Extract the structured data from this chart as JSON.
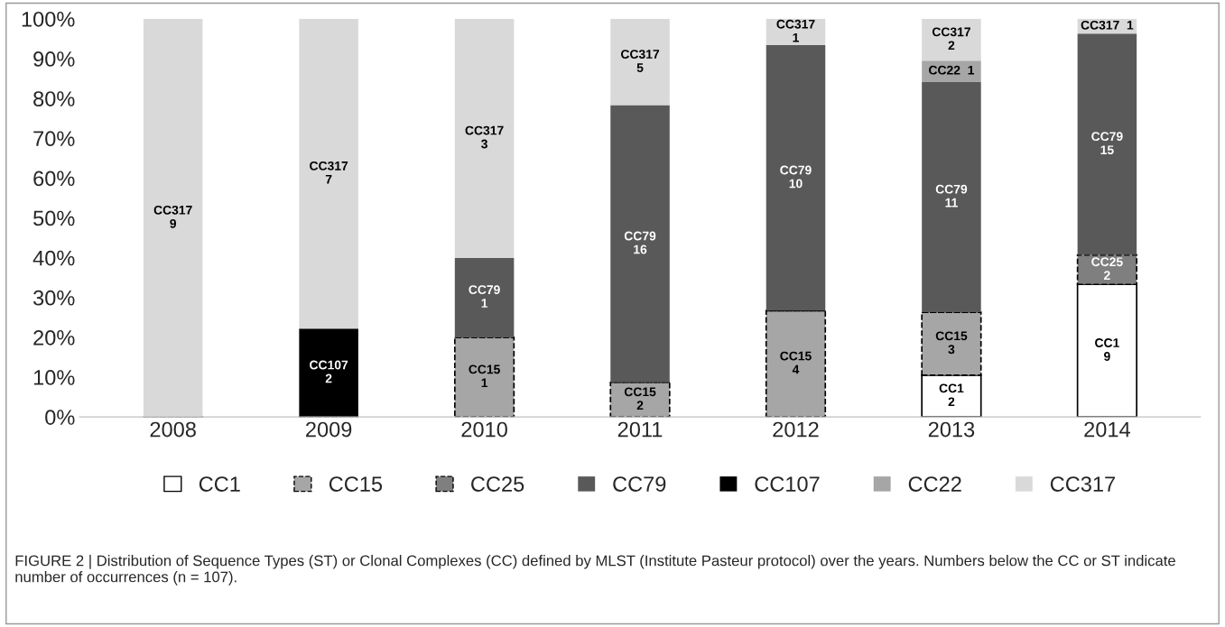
{
  "chart_data": {
    "type": "bar",
    "stacked": true,
    "categories": [
      "2008",
      "2009",
      "2010",
      "2011",
      "2012",
      "2013",
      "2014"
    ],
    "ylim": [
      0,
      100
    ],
    "yticks": [
      {
        "value": 0,
        "label": "0%"
      },
      {
        "value": 10,
        "label": "10%"
      },
      {
        "value": 20,
        "label": "20%"
      },
      {
        "value": 30,
        "label": "30%"
      },
      {
        "value": 40,
        "label": "40%"
      },
      {
        "value": 50,
        "label": "50%"
      },
      {
        "value": 60,
        "label": "60%"
      },
      {
        "value": 70,
        "label": "70%"
      },
      {
        "value": 80,
        "label": "80%"
      },
      {
        "value": 90,
        "label": "90%"
      },
      {
        "value": 100,
        "label": "100%"
      }
    ],
    "grid": false,
    "legend": "bottom",
    "series": [
      {
        "name": "CC1",
        "color": "#ffffff",
        "line_style": "solid",
        "values": [
          0,
          0,
          0,
          0,
          0,
          10.5,
          33.3
        ],
        "value_labels": [
          null,
          null,
          null,
          null,
          null,
          "CC1\n2",
          "CC1\n9"
        ]
      },
      {
        "name": "CC15",
        "color": "#a6a6a6",
        "line_style": "dashed",
        "values": [
          0,
          0,
          20,
          8.7,
          26.7,
          15.8,
          0
        ],
        "value_labels": [
          null,
          null,
          "CC15\n1",
          "CC15\n2",
          "CC15\n4",
          "CC15\n3",
          null
        ]
      },
      {
        "name": "CC25",
        "color": "#7f7f7f",
        "line_style": "dashed",
        "values": [
          0,
          0,
          0,
          0,
          0,
          0,
          7.4
        ],
        "value_labels": [
          null,
          null,
          null,
          null,
          null,
          null,
          "CC25\n2"
        ]
      },
      {
        "name": "CC79",
        "color": "#595959",
        "values": [
          0,
          0,
          20,
          69.6,
          66.7,
          57.9,
          55.6
        ],
        "value_labels": [
          null,
          null,
          "CC79\n1",
          "CC79\n16",
          "CC79\n10",
          "CC79\n11",
          "CC79\n15"
        ]
      },
      {
        "name": "CC107",
        "color": "#000000",
        "values": [
          0,
          22.2,
          0,
          0,
          0,
          0,
          0
        ],
        "value_labels": [
          null,
          "CC107\n2",
          null,
          null,
          null,
          null,
          null
        ]
      },
      {
        "name": "CC22",
        "color": "#a6a6a6",
        "values": [
          0,
          0,
          0,
          0,
          0,
          5.3,
          0
        ],
        "value_labels": [
          null,
          null,
          null,
          null,
          null,
          "CC22  1",
          null
        ]
      },
      {
        "name": "CC317",
        "color": "#d9d9d9",
        "values": [
          100,
          77.8,
          60,
          21.7,
          6.7,
          10.5,
          3.7
        ],
        "value_labels": [
          "CC317\n9",
          "CC317\n7",
          "CC317\n3",
          "CC317\n5",
          "CC317\n1",
          "CC317\n2",
          "CC317  1"
        ]
      }
    ],
    "annotations": [
      "FIGURE 2 | Distribution of Sequence Types (ST) or Clonal Complexes (CC) defined by MLST (Institute Pasteur protocol) over the years. Numbers below the CC or ST indicate number of occurrences (n = 107)."
    ]
  }
}
